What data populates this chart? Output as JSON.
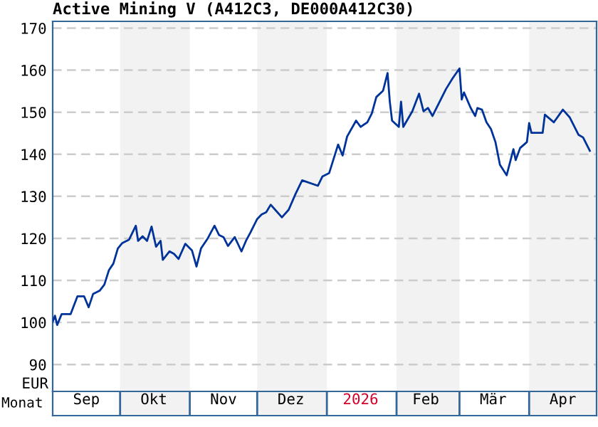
{
  "chart_data": {
    "type": "line",
    "title": "Active Mining V (A412C3, DE000A412C30)",
    "xlabel": "Monat",
    "ylabel": "EUR",
    "x": [
      "2025-09-01",
      "2025-09-02",
      "2025-09-03",
      "2025-09-05",
      "2025-09-09",
      "2025-09-12",
      "2025-09-15",
      "2025-09-17",
      "2025-09-19",
      "2025-09-22",
      "2025-09-24",
      "2025-09-26",
      "2025-09-28",
      "2025-09-30",
      "2025-10-02",
      "2025-10-05",
      "2025-10-08",
      "2025-10-09",
      "2025-10-11",
      "2025-10-13",
      "2025-10-15",
      "2025-10-17",
      "2025-10-19",
      "2025-10-20",
      "2025-10-23",
      "2025-10-25",
      "2025-10-27",
      "2025-10-30",
      "2025-11-02",
      "2025-11-04",
      "2025-11-06",
      "2025-11-09",
      "2025-11-12",
      "2025-11-14",
      "2025-11-16",
      "2025-11-18",
      "2025-11-21",
      "2025-11-24",
      "2025-11-26",
      "2025-11-28",
      "2025-12-01",
      "2025-12-03",
      "2025-12-05",
      "2025-12-07",
      "2025-12-09",
      "2025-12-12",
      "2025-12-15",
      "2025-12-18",
      "2025-12-21",
      "2025-12-28",
      "2025-12-30",
      "2026-01-02",
      "2026-01-06",
      "2026-01-08",
      "2026-01-10",
      "2026-01-14",
      "2026-01-16",
      "2026-01-19",
      "2026-01-21",
      "2026-01-23",
      "2026-01-26",
      "2026-01-28",
      "2026-01-29",
      "2026-01-30",
      "2026-02-02",
      "2026-02-03",
      "2026-02-04",
      "2026-02-08",
      "2026-02-11",
      "2026-02-13",
      "2026-02-15",
      "2026-02-17",
      "2026-02-23",
      "2026-02-26",
      "2026-03-01",
      "2026-03-02",
      "2026-03-03",
      "2026-03-06",
      "2026-03-08",
      "2026-03-09",
      "2026-03-11",
      "2026-03-13",
      "2026-03-15",
      "2026-03-17",
      "2026-03-19",
      "2026-03-22",
      "2026-03-25",
      "2026-03-26",
      "2026-03-28",
      "2026-03-31",
      "2026-04-01",
      "2026-04-02",
      "2026-04-07",
      "2026-04-08",
      "2026-04-12",
      "2026-04-16",
      "2026-04-19",
      "2026-04-23",
      "2026-04-25",
      "2026-04-28"
    ],
    "series": [
      {
        "color": "#003399",
        "values": [
          100.2,
          101.6,
          99.4,
          102,
          102,
          106.2,
          106.2,
          103.6,
          106.8,
          107.6,
          109,
          112.4,
          114,
          117.6,
          118.9,
          119.7,
          123,
          119.4,
          120.5,
          119.4,
          122.8,
          118,
          119.4,
          114.9,
          116.9,
          116.3,
          115.1,
          118.7,
          117.1,
          113.3,
          117.6,
          120,
          123,
          120.8,
          120.3,
          118.2,
          120.3,
          116.9,
          119.4,
          121.4,
          124.6,
          125.7,
          126.2,
          128,
          126.8,
          125,
          126.8,
          130.5,
          133.8,
          132.5,
          134.7,
          135.5,
          142.3,
          139.7,
          144.2,
          148,
          146.5,
          147.6,
          149.7,
          153.6,
          155.1,
          159.3,
          152.5,
          148,
          146.5,
          152.5,
          146.5,
          150.2,
          154.4,
          150.2,
          151,
          149.1,
          155.5,
          158.1,
          160.4,
          153,
          154.7,
          151,
          149.1,
          151,
          150.6,
          147.6,
          146,
          142.9,
          137.5,
          135,
          141.2,
          138.6,
          141.5,
          142.9,
          147.4,
          145.1,
          145.1,
          149.4,
          147.6,
          150.6,
          148.8,
          144.6,
          144,
          140.8
        ]
      }
    ],
    "xlim": [
      "2025-09-01",
      "2026-05-01"
    ],
    "xticks": [
      {
        "value": "2025-09-16",
        "label": "Sep"
      },
      {
        "value": "2025-10-16",
        "label": "Okt"
      },
      {
        "value": "2025-11-16",
        "label": "Nov"
      },
      {
        "value": "2025-12-16",
        "label": "Dez"
      },
      {
        "value": "2026-01-16",
        "label": "2026"
      },
      {
        "value": "2026-02-14",
        "label": "Feb"
      },
      {
        "value": "2026-03-16",
        "label": "Mär"
      },
      {
        "value": "2026-04-16",
        "label": "Apr"
      }
    ],
    "ylim": [
      83.6,
      171.6
    ],
    "yticks": [
      90,
      100,
      110,
      120,
      130,
      140,
      150,
      160,
      170
    ],
    "bands": [
      {
        "axis": "x",
        "from": "2025-10-01",
        "to": "2025-11-01",
        "color": "#f2f2f2"
      },
      {
        "axis": "x",
        "from": "2025-12-01",
        "to": "2026-01-01",
        "color": "#f2f2f2"
      },
      {
        "axis": "x",
        "from": "2026-02-01",
        "to": "2026-03-01",
        "color": "#f2f2f2"
      },
      {
        "axis": "x",
        "from": "2026-04-01",
        "to": "2026-05-01",
        "color": "#f2f2f2"
      }
    ],
    "grid": "y",
    "line_style": "solid",
    "marker": "none"
  }
}
